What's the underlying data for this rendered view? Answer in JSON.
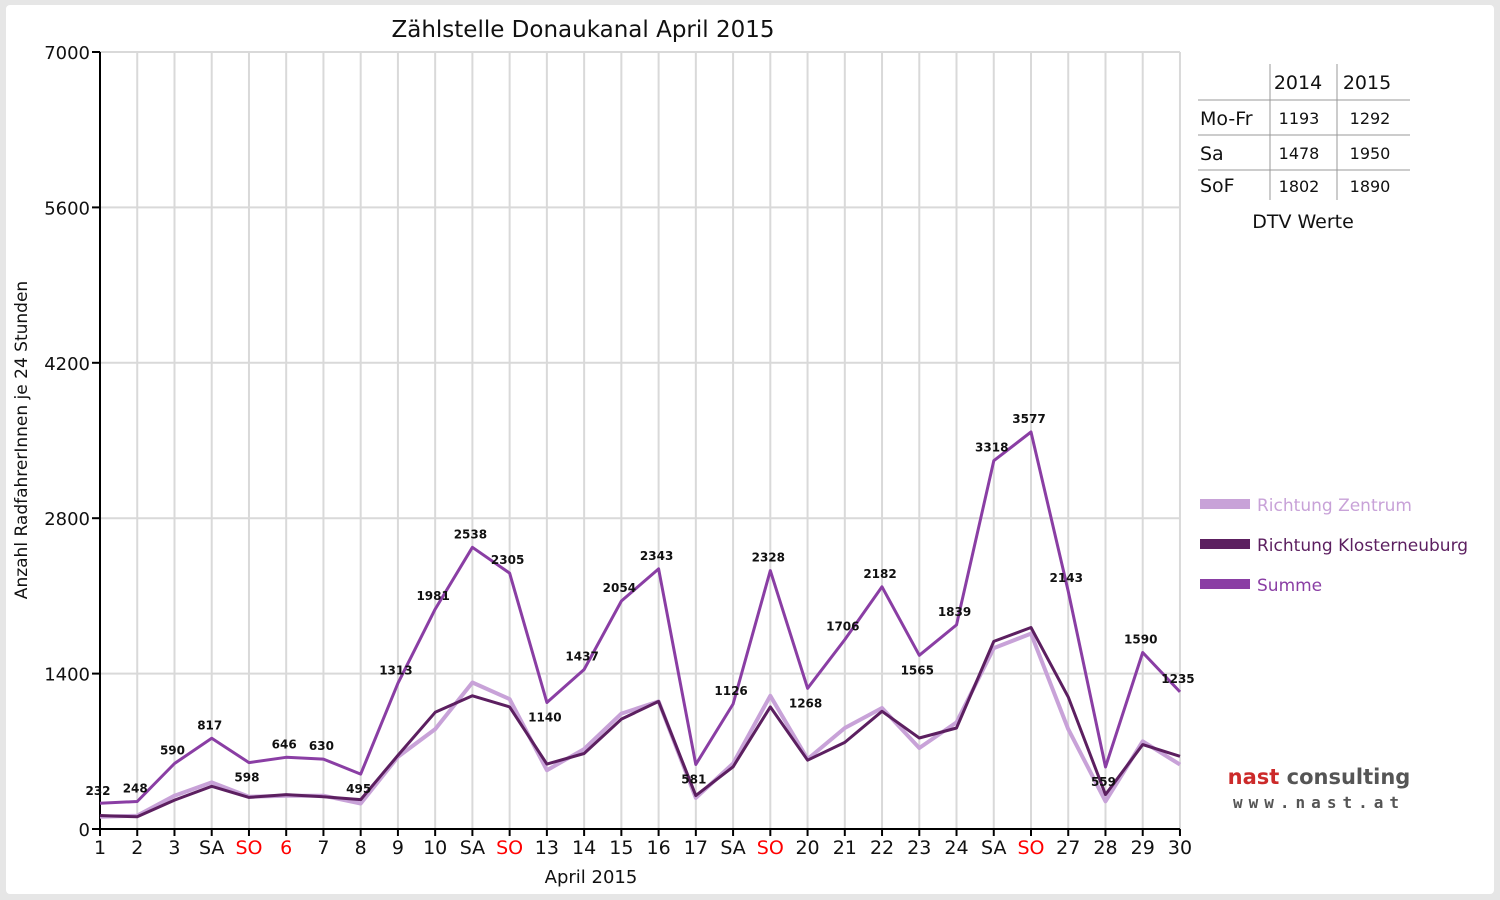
{
  "chart_data": {
    "type": "line",
    "title": "Zählstelle Donaukanal April 2015",
    "xlabel": "April 2015",
    "ylabel": "Anzahl RadfahrerInnen je 24 Stunden",
    "ylim": [
      0,
      7000
    ],
    "yticks": [
      "0",
      "1400",
      "2800",
      "4200",
      "5600",
      "7000"
    ],
    "grid": true,
    "legend_position": "right",
    "categories": [
      "1",
      "2",
      "3",
      "SA",
      "SO",
      "6",
      "7",
      "8",
      "9",
      "10",
      "SA",
      "SO",
      "13",
      "14",
      "15",
      "16",
      "17",
      "SA",
      "SO",
      "20",
      "21",
      "22",
      "23",
      "24",
      "SA",
      "SO",
      "27",
      "28",
      "29",
      "30"
    ],
    "highlighted_categories": [
      4,
      5,
      11,
      18,
      25
    ],
    "highlight_color": "#ff0000",
    "series": [
      {
        "name": "Richtung Zentrum",
        "color": "#c8a2d8",
        "values": [
          110,
          120,
          300,
          420,
          290,
          300,
          300,
          230,
          650,
          900,
          1320,
          1170,
          530,
          720,
          1040,
          1150,
          280,
          590,
          1200,
          630,
          910,
          1090,
          730,
          960,
          1630,
          1760,
          900,
          250,
          790,
          580
        ]
      },
      {
        "name": "Richtung Klosterneuburg",
        "color": "#5c1f60",
        "values": [
          122,
          110,
          260,
          385,
          285,
          310,
          290,
          265,
          663,
          1051,
          1200,
          1100,
          585,
          680,
          990,
          1150,
          301,
          560,
          1100,
          620,
          780,
          1060,
          820,
          910,
          1690,
          1815,
          1190,
          310,
          760,
          655
        ]
      },
      {
        "name": "Summe",
        "color": "#8a3ea4",
        "values": [
          232,
          248,
          590,
          817,
          598,
          646,
          630,
          495,
          1313,
          1981,
          2538,
          2305,
          1140,
          1437,
          2054,
          2343,
          581,
          1126,
          2328,
          1268,
          1706,
          2182,
          1565,
          1839,
          3318,
          3577,
          2143,
          559,
          1590,
          1235
        ]
      }
    ]
  },
  "dtv_table": {
    "caption": "DTV Werte",
    "years": [
      "2014",
      "2015"
    ],
    "rows": [
      {
        "label": "Mo-Fr",
        "v2014": "1193",
        "v2015": "1292"
      },
      {
        "label": "Sa",
        "v2014": "1478",
        "v2015": "1950"
      },
      {
        "label": "SoF",
        "v2014": "1802",
        "v2015": "1890"
      }
    ]
  },
  "logo": {
    "company": "nast consulting",
    "url": "www.nast.at",
    "color_main": "#555555",
    "color_accent": "#cc2a2a"
  }
}
